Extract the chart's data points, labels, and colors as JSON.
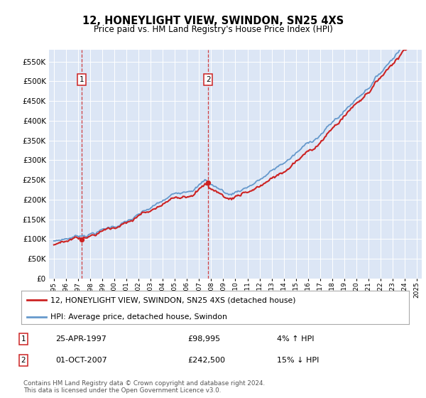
{
  "title": "12, HONEYLIGHT VIEW, SWINDON, SN25 4XS",
  "subtitle": "Price paid vs. HM Land Registry's House Price Index (HPI)",
  "bg_color": "#dce6f5",
  "sale1_date": 1997.31,
  "sale1_price": 98995,
  "sale2_date": 2007.75,
  "sale2_price": 242500,
  "legend_line1": "12, HONEYLIGHT VIEW, SWINDON, SN25 4XS (detached house)",
  "legend_line2": "HPI: Average price, detached house, Swindon",
  "footnote": "Contains HM Land Registry data © Crown copyright and database right 2024.\nThis data is licensed under the Open Government Licence v3.0.",
  "xmin": 1994.6,
  "xmax": 2025.4,
  "ymin": 0,
  "ymax": 580000,
  "red_color": "#cc2222",
  "blue_color": "#6699cc"
}
